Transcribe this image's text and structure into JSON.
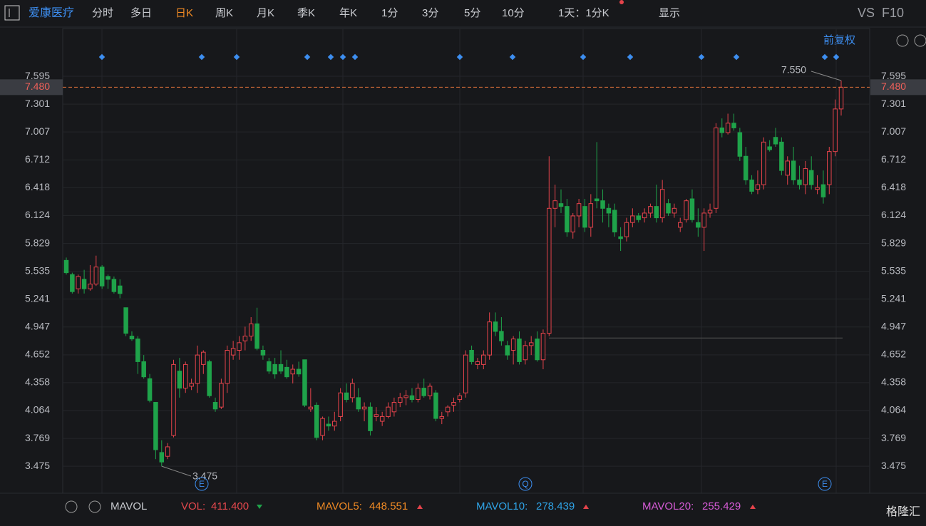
{
  "toolbar": {
    "stock": "爱康医疗",
    "tabs": [
      "分时",
      "多日",
      "日K",
      "周K",
      "月K",
      "季K",
      "年K",
      "1分",
      "3分",
      "5分",
      "10分"
    ],
    "active_tab": 2,
    "period": "1天：1分K",
    "display": "显示",
    "vs": "VS",
    "f10": "F10"
  },
  "adjust": "前复权",
  "chart_data": {
    "type": "candlestick",
    "ylim": [
      3.19,
      8.1
    ],
    "yticks": [
      7.595,
      7.301,
      7.007,
      6.712,
      6.418,
      6.124,
      5.829,
      5.535,
      5.241,
      4.947,
      4.652,
      4.358,
      4.064,
      3.769,
      3.475
    ],
    "last_price": {
      "value": 7.48,
      "label": "7.480"
    },
    "high_label": {
      "value": 7.55,
      "label": "7.550"
    },
    "low_label": {
      "value": 3.475,
      "label": "3.475"
    },
    "up_color": "#e5434b",
    "down_color": "#1fa34a",
    "ohlc": [
      [
        5.65,
        5.68,
        5.5,
        5.52
      ],
      [
        5.5,
        5.52,
        5.3,
        5.32
      ],
      [
        5.35,
        5.5,
        5.3,
        5.48
      ],
      [
        5.45,
        5.55,
        5.3,
        5.35
      ],
      [
        5.35,
        5.6,
        5.33,
        5.4
      ],
      [
        5.4,
        5.7,
        5.38,
        5.58
      ],
      [
        5.58,
        5.6,
        5.35,
        5.38
      ],
      [
        5.48,
        5.5,
        5.35,
        5.45
      ],
      [
        5.45,
        5.48,
        5.3,
        5.32
      ],
      [
        5.38,
        5.45,
        5.25,
        5.3
      ],
      [
        5.15,
        5.15,
        4.85,
        4.88
      ],
      [
        4.85,
        4.9,
        4.8,
        4.82
      ],
      [
        4.82,
        4.85,
        4.45,
        4.58
      ],
      [
        4.58,
        4.65,
        4.4,
        4.42
      ],
      [
        4.4,
        4.45,
        4.15,
        4.17
      ],
      [
        4.15,
        4.15,
        3.55,
        3.65
      ],
      [
        3.62,
        3.75,
        3.475,
        3.52
      ],
      [
        3.58,
        3.72,
        3.55,
        3.68
      ],
      [
        3.8,
        4.6,
        3.78,
        4.55
      ],
      [
        4.48,
        4.62,
        4.2,
        4.3
      ],
      [
        4.3,
        4.58,
        4.25,
        4.55
      ],
      [
        4.32,
        4.4,
        4.28,
        4.35
      ],
      [
        4.35,
        4.75,
        4.25,
        4.65
      ],
      [
        4.55,
        4.7,
        4.45,
        4.68
      ],
      [
        4.58,
        4.6,
        4.2,
        4.22
      ],
      [
        4.15,
        4.2,
        4.05,
        4.08
      ],
      [
        4.1,
        4.4,
        4.08,
        4.35
      ],
      [
        4.35,
        4.75,
        4.25,
        4.7
      ],
      [
        4.65,
        4.8,
        4.6,
        4.72
      ],
      [
        4.7,
        4.85,
        4.6,
        4.78
      ],
      [
        4.8,
        4.95,
        4.7,
        4.85
      ],
      [
        4.85,
        5.05,
        4.8,
        4.98
      ],
      [
        4.98,
        5.15,
        4.7,
        4.72
      ],
      [
        4.7,
        4.75,
        4.6,
        4.65
      ],
      [
        4.58,
        4.62,
        4.45,
        4.48
      ],
      [
        4.55,
        4.62,
        4.4,
        4.45
      ],
      [
        4.55,
        4.7,
        4.45,
        4.48
      ],
      [
        4.52,
        4.6,
        4.4,
        4.42
      ],
      [
        4.45,
        4.55,
        4.35,
        4.5
      ],
      [
        4.5,
        4.58,
        4.42,
        4.45
      ],
      [
        4.6,
        4.6,
        4.1,
        4.12
      ],
      [
        4.08,
        4.3,
        4.05,
        4.1
      ],
      [
        4.12,
        4.15,
        3.75,
        3.78
      ],
      [
        3.8,
        4.0,
        3.75,
        3.98
      ],
      [
        3.92,
        4.0,
        3.85,
        3.9
      ],
      [
        3.9,
        4.05,
        3.85,
        3.95
      ],
      [
        4.0,
        4.3,
        3.95,
        4.25
      ],
      [
        4.25,
        4.35,
        4.15,
        4.18
      ],
      [
        4.2,
        4.4,
        4.15,
        4.35
      ],
      [
        4.2,
        4.3,
        4.05,
        4.08
      ],
      [
        4.08,
        4.15,
        3.95,
        4.1
      ],
      [
        4.1,
        4.15,
        3.8,
        3.85
      ],
      [
        4.0,
        4.1,
        3.95,
        4.02
      ],
      [
        3.95,
        4.05,
        3.9,
        4.0
      ],
      [
        4.0,
        4.15,
        3.98,
        4.1
      ],
      [
        4.05,
        4.2,
        4.0,
        4.15
      ],
      [
        4.15,
        4.25,
        4.1,
        4.2
      ],
      [
        4.2,
        4.28,
        4.12,
        4.22
      ],
      [
        4.22,
        4.3,
        4.15,
        4.18
      ],
      [
        4.18,
        4.35,
        4.15,
        4.3
      ],
      [
        4.3,
        4.4,
        4.2,
        4.22
      ],
      [
        4.22,
        4.35,
        4.18,
        4.32
      ],
      [
        4.25,
        4.28,
        3.95,
        3.98
      ],
      [
        3.98,
        4.05,
        3.92,
        4.0
      ],
      [
        4.05,
        4.12,
        4.0,
        4.1
      ],
      [
        4.12,
        4.2,
        4.05,
        4.15
      ],
      [
        4.18,
        4.25,
        4.15,
        4.22
      ],
      [
        4.25,
        4.7,
        4.2,
        4.65
      ],
      [
        4.7,
        4.75,
        4.55,
        4.58
      ],
      [
        4.55,
        4.62,
        4.5,
        4.58
      ],
      [
        4.55,
        4.7,
        4.5,
        4.65
      ],
      [
        4.65,
        5.1,
        4.6,
        5.0
      ],
      [
        5.0,
        5.1,
        4.85,
        4.9
      ],
      [
        4.9,
        5.05,
        4.75,
        4.8
      ],
      [
        4.75,
        4.8,
        4.6,
        4.65
      ],
      [
        4.7,
        4.85,
        4.55,
        4.82
      ],
      [
        4.82,
        4.9,
        4.55,
        4.58
      ],
      [
        4.6,
        4.8,
        4.55,
        4.75
      ],
      [
        4.75,
        4.85,
        4.65,
        4.78
      ],
      [
        4.82,
        4.9,
        4.58,
        4.6
      ],
      [
        4.6,
        4.92,
        4.5,
        4.88
      ],
      [
        4.88,
        6.75,
        4.85,
        6.2
      ],
      [
        6.2,
        6.45,
        6.0,
        6.28
      ],
      [
        6.25,
        6.4,
        6.15,
        6.22
      ],
      [
        6.22,
        6.3,
        5.9,
        5.95
      ],
      [
        5.95,
        6.15,
        5.88,
        6.12
      ],
      [
        6.12,
        6.3,
        6.0,
        6.25
      ],
      [
        6.22,
        6.3,
        5.95,
        6.0
      ],
      [
        6.0,
        6.35,
        5.9,
        6.25
      ],
      [
        6.3,
        6.9,
        6.2,
        6.28
      ],
      [
        6.28,
        6.4,
        6.05,
        6.2
      ],
      [
        6.2,
        6.25,
        6.0,
        6.15
      ],
      [
        6.18,
        6.25,
        5.9,
        5.95
      ],
      [
        5.9,
        6.0,
        5.75,
        5.88
      ],
      [
        5.9,
        6.1,
        5.85,
        6.05
      ],
      [
        6.05,
        6.2,
        6.0,
        6.12
      ],
      [
        6.12,
        6.15,
        6.05,
        6.08
      ],
      [
        6.1,
        6.2,
        6.05,
        6.15
      ],
      [
        6.15,
        6.25,
        6.1,
        6.22
      ],
      [
        6.22,
        6.45,
        6.05,
        6.1
      ],
      [
        6.1,
        6.5,
        6.05,
        6.4
      ],
      [
        6.25,
        6.3,
        6.12,
        6.15
      ],
      [
        6.15,
        6.25,
        6.1,
        6.2
      ],
      [
        6.0,
        6.1,
        5.95,
        6.05
      ],
      [
        6.08,
        6.3,
        6.05,
        6.28
      ],
      [
        6.3,
        6.4,
        6.05,
        6.08
      ],
      [
        6.05,
        6.2,
        5.9,
        6.0
      ],
      [
        6.0,
        6.2,
        5.75,
        6.15
      ],
      [
        6.15,
        6.25,
        6.1,
        6.18
      ],
      [
        6.2,
        7.1,
        6.15,
        7.05
      ],
      [
        7.05,
        7.15,
        6.95,
        7.0
      ],
      [
        7.0,
        7.2,
        6.98,
        7.1
      ],
      [
        7.1,
        7.2,
        7.02,
        7.05
      ],
      [
        7.0,
        7.05,
        6.7,
        6.75
      ],
      [
        6.75,
        6.85,
        6.45,
        6.5
      ],
      [
        6.5,
        6.55,
        6.35,
        6.38
      ],
      [
        6.4,
        6.6,
        6.35,
        6.45
      ],
      [
        6.45,
        6.95,
        6.4,
        6.9
      ],
      [
        6.85,
        6.92,
        6.8,
        6.82
      ],
      [
        6.95,
        7.05,
        6.85,
        6.88
      ],
      [
        6.9,
        6.95,
        6.55,
        6.6
      ],
      [
        6.55,
        6.75,
        6.45,
        6.7
      ],
      [
        6.7,
        6.85,
        6.45,
        6.5
      ],
      [
        6.5,
        6.65,
        6.4,
        6.45
      ],
      [
        6.45,
        6.7,
        6.35,
        6.62
      ],
      [
        6.6,
        6.75,
        6.4,
        6.45
      ],
      [
        6.4,
        6.55,
        6.35,
        6.42
      ],
      [
        6.45,
        6.6,
        6.25,
        6.32
      ],
      [
        6.45,
        6.85,
        6.35,
        6.8
      ],
      [
        6.8,
        7.35,
        6.75,
        7.25
      ],
      [
        7.25,
        7.55,
        7.18,
        7.48
      ]
    ],
    "events": [
      "E",
      "Q",
      "E"
    ]
  },
  "indicator": {
    "name": "MAVOL",
    "items": [
      {
        "label": "VOL:",
        "value": "411.400",
        "color": "#e5484d"
      },
      {
        "label": "MAVOL5:",
        "value": "448.551",
        "color": "#f08a24"
      },
      {
        "label": "MAVOL10:",
        "value": "278.439",
        "color": "#2fa3e6"
      },
      {
        "label": "MAVOL20:",
        "value": "255.429",
        "color": "#d65bd6"
      }
    ]
  },
  "logo": "格隆汇"
}
